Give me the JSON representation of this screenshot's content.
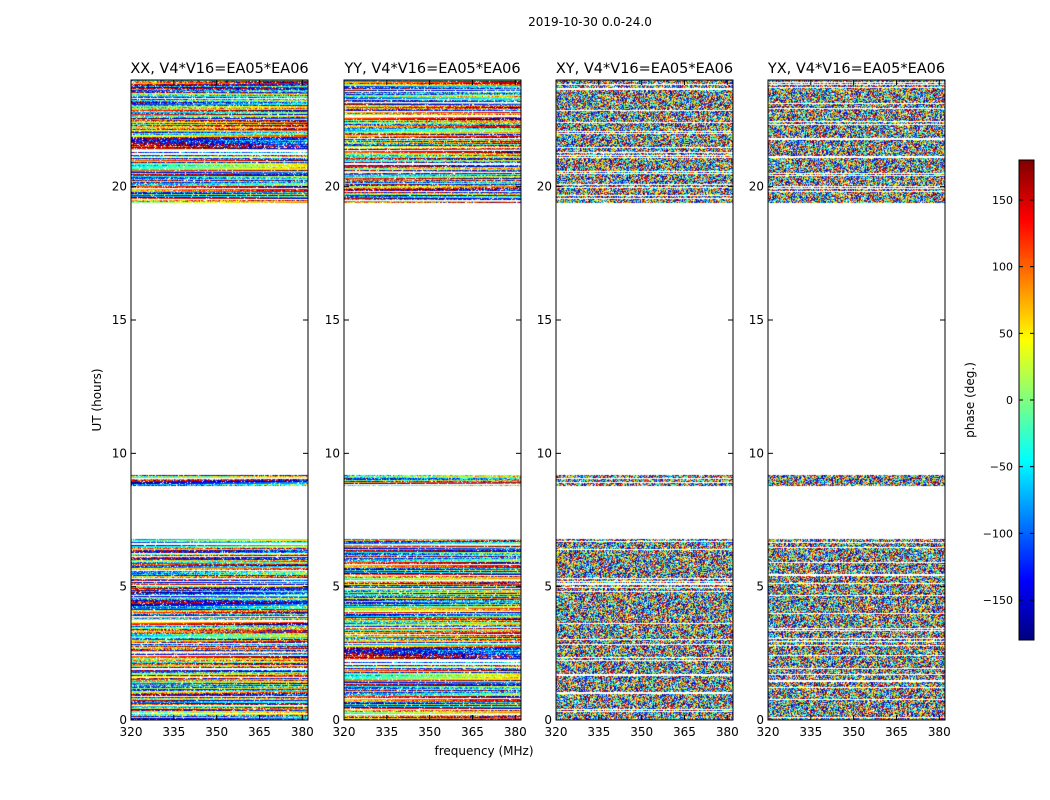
{
  "suptitle": "2019-10-30 0.0-24.0",
  "colors": {
    "colormap": "jet",
    "jet_stops": [
      "#00007f",
      "#0000ff",
      "#007fff",
      "#00ffff",
      "#7fff7f",
      "#ffff00",
      "#ff7f00",
      "#ff0000",
      "#7f0000"
    ]
  },
  "chart_data": [
    {
      "type": "heatmap",
      "title": "XX, V4*V16=EA05*EA06",
      "xlabel": "",
      "ylabel": "UT (hours)",
      "xlim": [
        320,
        382
      ],
      "ylim": [
        0,
        24
      ],
      "x_ticks": [
        "320",
        "335",
        "350",
        "365",
        "380"
      ],
      "y_ticks": [
        "0",
        "5",
        "10",
        "15",
        "20"
      ],
      "data_present_ut_ranges": [
        [
          0.0,
          6.8
        ],
        [
          8.8,
          9.2
        ],
        [
          19.4,
          24.0
        ]
      ],
      "pattern": "coherent"
    },
    {
      "type": "heatmap",
      "title": "YY, V4*V16=EA05*EA06",
      "xlabel": "frequency (MHz)",
      "ylabel": "",
      "xlim": [
        320,
        382
      ],
      "ylim": [
        0,
        24
      ],
      "x_ticks": [
        "320",
        "335",
        "350",
        "365",
        "380"
      ],
      "y_ticks": [
        "0",
        "5",
        "10",
        "15",
        "20"
      ],
      "data_present_ut_ranges": [
        [
          0.0,
          6.8
        ],
        [
          8.8,
          9.2
        ],
        [
          19.4,
          24.0
        ]
      ],
      "pattern": "coherent"
    },
    {
      "type": "heatmap",
      "title": "XY, V4*V16=EA05*EA06",
      "xlabel": "",
      "ylabel": "",
      "xlim": [
        320,
        382
      ],
      "ylim": [
        0,
        24
      ],
      "x_ticks": [
        "320",
        "335",
        "350",
        "365",
        "380"
      ],
      "y_ticks": [
        "0",
        "5",
        "10",
        "15",
        "20"
      ],
      "data_present_ut_ranges": [
        [
          0.0,
          6.8
        ],
        [
          8.8,
          9.2
        ],
        [
          19.4,
          24.0
        ]
      ],
      "pattern": "noise"
    },
    {
      "type": "heatmap",
      "title": "YX, V4*V16=EA05*EA06",
      "xlabel": "",
      "ylabel": "",
      "xlim": [
        320,
        382
      ],
      "ylim": [
        0,
        24
      ],
      "x_ticks": [
        "320",
        "335",
        "350",
        "365",
        "380"
      ],
      "y_ticks": [
        "0",
        "5",
        "10",
        "15",
        "20"
      ],
      "data_present_ut_ranges": [
        [
          0.0,
          6.8
        ],
        [
          8.8,
          9.2
        ],
        [
          19.4,
          24.0
        ]
      ],
      "pattern": "noise"
    }
  ],
  "colorbar": {
    "label": "phase (deg.)",
    "range": [
      -180,
      180
    ],
    "ticks": [
      "150",
      "100",
      "50",
      "0",
      "−50",
      "−100",
      "−150"
    ],
    "tick_values": [
      150,
      100,
      50,
      0,
      -50,
      -100,
      -150
    ]
  }
}
